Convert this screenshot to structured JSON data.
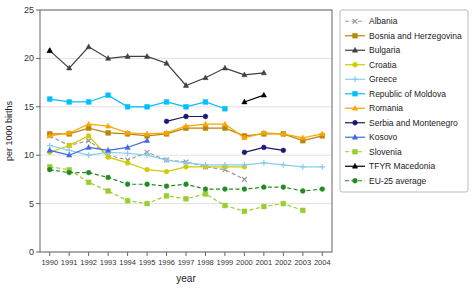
{
  "chart_data": {
    "type": "line",
    "xlabel": "year",
    "ylabel": "per 1000 births",
    "x": [
      1990,
      1991,
      1992,
      1993,
      1994,
      1995,
      1996,
      1997,
      1998,
      1999,
      2000,
      2001,
      2002,
      2003,
      2004
    ],
    "xlim": [
      1989.5,
      2004.5
    ],
    "xticks": [
      1990,
      1991,
      1992,
      1993,
      1994,
      1995,
      1996,
      1997,
      1998,
      1999,
      2000,
      2001,
      2002,
      2003,
      2004
    ],
    "ylim": [
      0,
      25
    ],
    "yticks": [
      0,
      5,
      10,
      15,
      20,
      25
    ],
    "grid": true,
    "legend": "right",
    "series": [
      {
        "name": "Albania",
        "color": "#999999",
        "marker": "x",
        "line_style": "dashed",
        "values": [
          12.0,
          11.0,
          11.5,
          10.0,
          9.5,
          10.3,
          9.5,
          9.3,
          8.8,
          8.5,
          7.5,
          null,
          null,
          null,
          null
        ]
      },
      {
        "name": "Bosnia and Herzegovina",
        "color": "#b8860b",
        "marker": "square",
        "line_style": "solid",
        "values": [
          12.2,
          12.2,
          12.8,
          12.3,
          12.2,
          12.0,
          12.2,
          12.8,
          12.8,
          12.8,
          12.0,
          12.2,
          12.2,
          11.5,
          12.0
        ]
      },
      {
        "name": "Bulgaria",
        "color": "#404040",
        "marker": "triangle",
        "line_style": "solid",
        "values": [
          20.8,
          19.0,
          21.2,
          20.0,
          20.2,
          20.2,
          19.5,
          17.2,
          18.0,
          19.0,
          18.3,
          18.5,
          null,
          null,
          null
        ]
      },
      {
        "name": "Croatia",
        "color": "#cccc00",
        "marker": "circle",
        "line_style": "solid",
        "values": [
          10.3,
          11.0,
          12.0,
          9.8,
          9.2,
          8.5,
          8.3,
          8.8,
          8.8,
          8.8,
          8.8,
          null,
          null,
          null,
          null
        ]
      },
      {
        "name": "Greece",
        "color": "#87CEEB",
        "marker": "plus",
        "line_style": "solid",
        "values": [
          11.0,
          10.5,
          10.0,
          10.3,
          10.2,
          10.0,
          9.5,
          9.2,
          9.0,
          9.0,
          9.0,
          9.2,
          9.0,
          8.8,
          8.8
        ]
      },
      {
        "name": "Republic of Moldova",
        "color": "#00BFFF",
        "marker": "square",
        "line_style": "solid",
        "values": [
          15.8,
          15.5,
          15.5,
          16.2,
          15.0,
          15.0,
          15.5,
          15.0,
          15.5,
          14.8,
          null,
          null,
          null,
          null,
          null
        ]
      },
      {
        "name": "Romania",
        "color": "#FFA500",
        "marker": "triangle",
        "line_style": "solid",
        "values": [
          12.0,
          12.3,
          13.2,
          13.0,
          12.3,
          12.2,
          12.3,
          13.0,
          13.2,
          13.2,
          11.8,
          12.3,
          12.2,
          11.8,
          12.2
        ]
      },
      {
        "name": "Serbia and Montenegro",
        "color": "#191970",
        "marker": "circle",
        "line_style": "solid",
        "values": [
          null,
          null,
          null,
          null,
          null,
          null,
          13.5,
          14.0,
          14.0,
          null,
          10.3,
          10.8,
          10.5,
          null,
          null
        ]
      },
      {
        "name": "Kosovo",
        "color": "#4169E1",
        "marker": "triangle",
        "line_style": "solid",
        "values": [
          10.5,
          10.0,
          10.8,
          10.5,
          10.8,
          11.5,
          null,
          null,
          null,
          null,
          null,
          null,
          null,
          null,
          null
        ]
      },
      {
        "name": "Slovenia",
        "color": "#9ACD32",
        "marker": "square",
        "line_style": "dashed",
        "values": [
          8.8,
          8.5,
          7.2,
          6.3,
          5.3,
          5.0,
          5.8,
          5.5,
          6.0,
          4.8,
          4.2,
          4.7,
          5.0,
          4.3,
          null
        ]
      },
      {
        "name": "TFYR Macedonia",
        "color": "#000000",
        "marker": "triangle",
        "line_style": "solid",
        "values": [
          20.8,
          null,
          null,
          null,
          null,
          null,
          null,
          null,
          null,
          null,
          15.5,
          16.2,
          null,
          null,
          null
        ]
      },
      {
        "name": "EU-25 average",
        "color": "#228B22",
        "marker": "circle",
        "line_style": "dashed",
        "values": [
          8.5,
          8.2,
          8.2,
          7.7,
          7.0,
          7.0,
          6.8,
          7.0,
          6.5,
          6.5,
          6.5,
          6.7,
          6.7,
          6.3,
          6.5
        ]
      }
    ]
  }
}
